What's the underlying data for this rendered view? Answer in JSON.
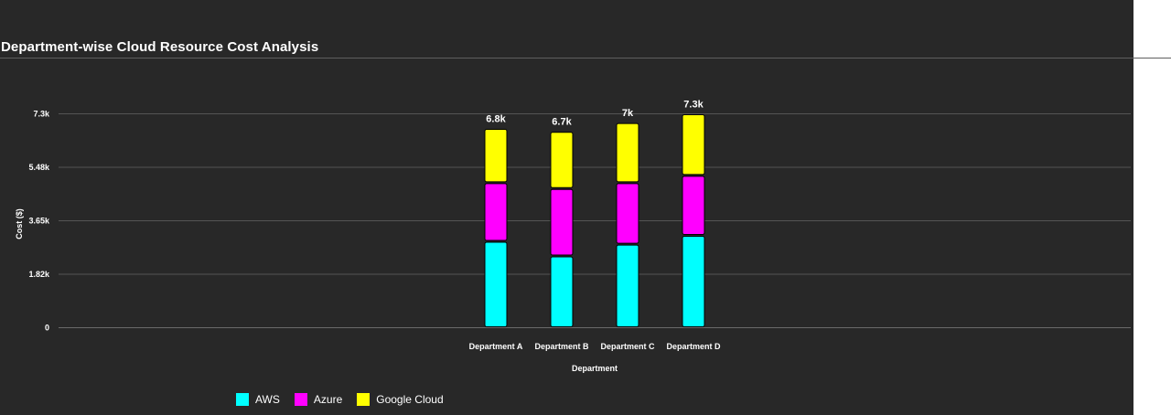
{
  "chart_data": {
    "type": "bar",
    "stacked": true,
    "title": "Department-wise Cloud Resource Cost Analysis",
    "xlabel": "Department",
    "ylabel": "Cost ($)",
    "categories": [
      "Department A",
      "Department B",
      "Department C",
      "Department D"
    ],
    "series": [
      {
        "name": "AWS",
        "color": "#00ffff",
        "values": [
          2950,
          2450,
          2850,
          3150
        ]
      },
      {
        "name": "Azure",
        "color": "#ff00ff",
        "values": [
          2000,
          2300,
          2100,
          2050
        ]
      },
      {
        "name": "Google Cloud",
        "color": "#ffff00",
        "values": [
          1850,
          1950,
          2050,
          2100
        ]
      }
    ],
    "totals": [
      "6.8k",
      "6.7k",
      "7k",
      "7.3k"
    ],
    "yticks": [
      0,
      1825,
      3650,
      5475,
      7300
    ],
    "ytick_labels": [
      "0",
      "1.82k",
      "3.65k",
      "5.48k",
      "7.3k"
    ],
    "ylim": [
      0,
      7300
    ],
    "grid": true,
    "legend_position": "bottom-left"
  }
}
